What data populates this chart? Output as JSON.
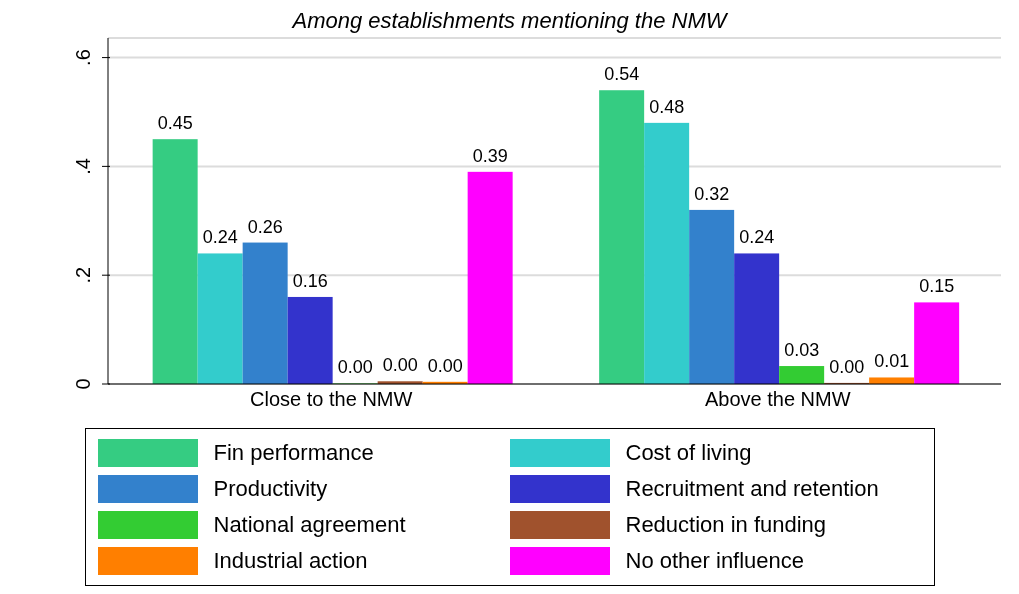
{
  "chart_data": {
    "type": "bar",
    "title": "Among establishments mentioning the NMW",
    "categories": [
      "Close to the NMW",
      "Above the NMW"
    ],
    "series": [
      {
        "name": "Fin performance",
        "color": "#35cc82",
        "values": [
          0.45,
          0.54
        ],
        "value_labels": [
          "0.45",
          "0.54"
        ]
      },
      {
        "name": "Cost of living",
        "color": "#33cccc",
        "values": [
          0.24,
          0.48
        ],
        "value_labels": [
          "0.24",
          "0.48"
        ]
      },
      {
        "name": "Productivity",
        "color": "#3381cc",
        "values": [
          0.26,
          0.32
        ],
        "value_labels": [
          "0.26",
          "0.32"
        ]
      },
      {
        "name": "Recruitment and retention",
        "color": "#3333cc",
        "values": [
          0.16,
          0.24
        ],
        "value_labels": [
          "0.16",
          "0.24"
        ]
      },
      {
        "name": "National agreement",
        "color": "#33cc33",
        "values": [
          0.001,
          0.033
        ],
        "value_labels": [
          "0.00",
          "0.03"
        ]
      },
      {
        "name": "Reduction in funding",
        "color": "#a0522d",
        "values": [
          0.005,
          0.002
        ],
        "value_labels": [
          "0.00",
          "0.00"
        ]
      },
      {
        "name": "Industrial action",
        "color": "#ff7f00",
        "values": [
          0.004,
          0.012
        ],
        "value_labels": [
          "0.00",
          "0.01"
        ]
      },
      {
        "name": "No other influence",
        "color": "#ff00ff",
        "values": [
          0.39,
          0.15
        ],
        "value_labels": [
          "0.39",
          "0.15"
        ]
      }
    ],
    "ylim": [
      0,
      0.636
    ],
    "yticks": [
      0,
      {
        "value": 0.2,
        "label": ".2"
      },
      {
        "value": 0.4,
        "label": ".4"
      },
      {
        "value": 0.6,
        "label": ".6"
      }
    ],
    "grid": "y",
    "legend": "bottom"
  }
}
